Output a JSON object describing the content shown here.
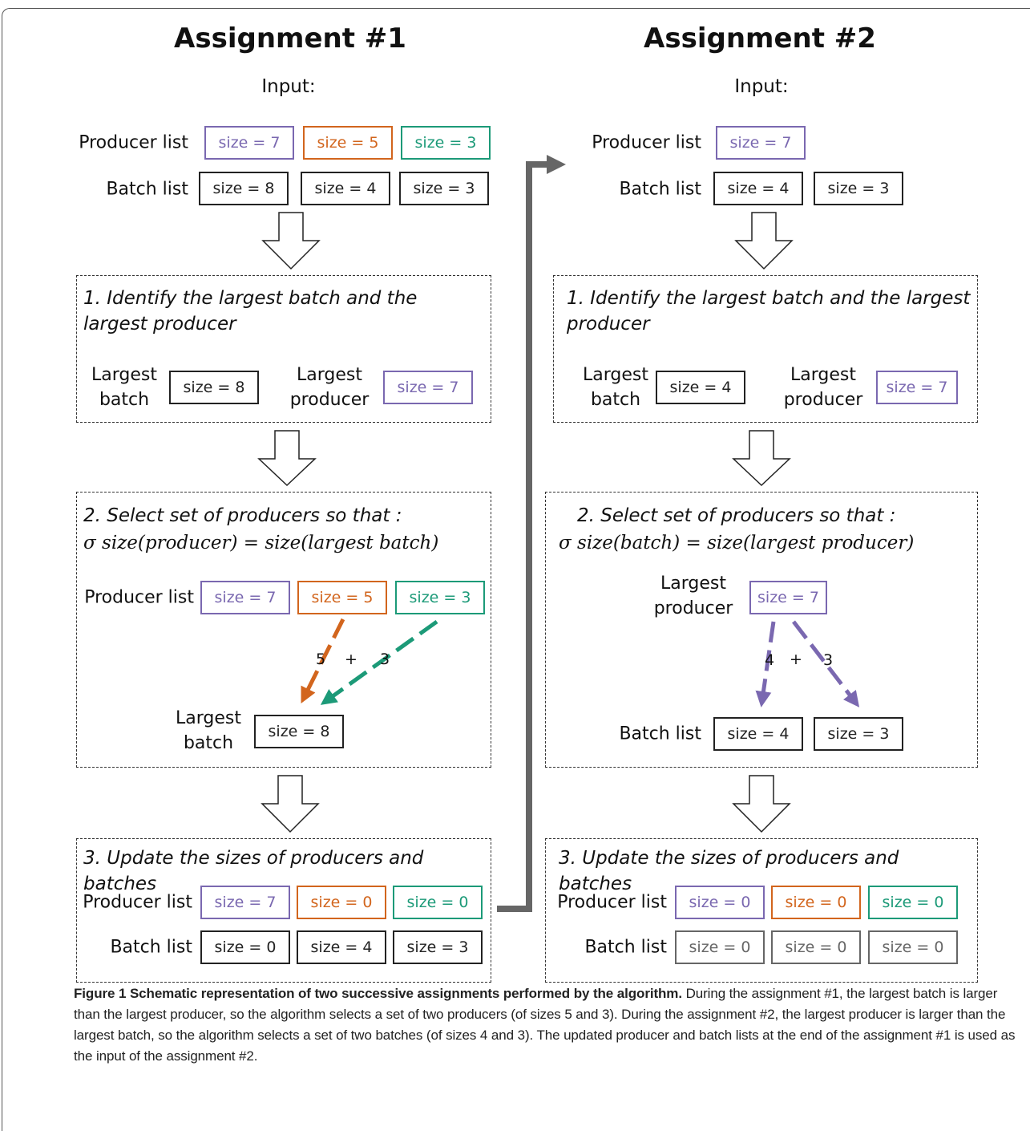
{
  "columns": [
    {
      "title": "Assignment #1",
      "input_label": "Input:",
      "input": {
        "producer_label": "Producer list",
        "producers": [
          "size = 7",
          "size = 5",
          "size = 3"
        ],
        "batch_label": "Batch list",
        "batches": [
          "size = 8",
          "size = 4",
          "size = 3"
        ]
      },
      "step1": {
        "heading": "1. Identify the largest batch and the largest producer",
        "batch_label": "Largest batch",
        "batch": "size = 8",
        "producer_label": "Largest producer",
        "producer": "size = 7"
      },
      "step2": {
        "heading": "2. Select set of producers so that :",
        "formula": "σ size(producer) = size(largest batch)",
        "producer_label": "Producer list",
        "producers": [
          "size = 7",
          "size = 5",
          "size = 3"
        ],
        "terms": [
          5,
          3
        ],
        "plus": "+",
        "batch_label": "Largest batch",
        "batch": "size = 8"
      },
      "step3": {
        "heading": "3. Update the sizes of producers and batches",
        "producer_label": "Producer list",
        "producers": [
          "size = 7",
          "size = 0",
          "size = 0"
        ],
        "batch_label": "Batch list",
        "batches": [
          "size = 0",
          "size = 4",
          "size = 3"
        ]
      }
    },
    {
      "title": "Assignment #2",
      "input_label": "Input:",
      "input": {
        "producer_label": "Producer list",
        "producers": [
          "size = 7"
        ],
        "batch_label": "Batch list",
        "batches": [
          "size = 4",
          "size = 3"
        ]
      },
      "step1": {
        "heading": "1. Identify the largest batch and the largest producer",
        "batch_label": "Largest batch",
        "batch": "size = 4",
        "producer_label": "Largest producer",
        "producer": "size = 7"
      },
      "step2": {
        "heading": "2. Select set of producers so that :",
        "formula": "σ size(batch) = size(largest producer)",
        "producer_label": "Largest producer",
        "producer": "size = 7",
        "terms": [
          4,
          3
        ],
        "plus": "+",
        "batch_label": "Batch list",
        "batches": [
          "size = 4",
          "size = 3"
        ]
      },
      "step3": {
        "heading": "3. Update the sizes of producers and batches",
        "producer_label": "Producer list",
        "producers": [
          "size = 0",
          "size = 0",
          "size = 0"
        ],
        "batch_label": "Batch list",
        "batches": [
          "size = 0",
          "size = 0",
          "size = 0"
        ]
      }
    }
  ],
  "caption": {
    "label": "Figure 1  Schematic representation of two successive assignments performed by the algorithm.",
    "text": "During the assignment #1, the largest batch is larger than the largest producer, so the algorithm selects a set of two producers (of sizes 5 and 3). During the assignment #2, the largest producer is larger than the largest batch, so the algorithm selects a set of two batches (of sizes 4 and 3). The updated producer and batch lists at the end of the assignment #1 is used as the input of the assignment #2."
  }
}
